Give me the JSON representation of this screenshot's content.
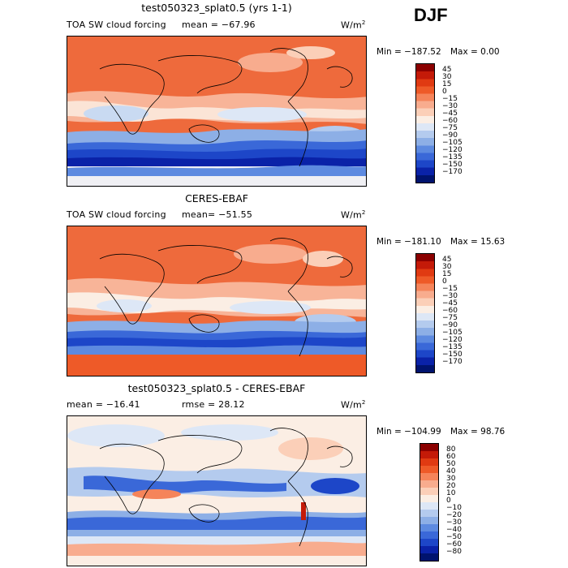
{
  "season": "DJF",
  "units_base": "W/m",
  "units_exp": "2",
  "panels": [
    {
      "title": "test050323_splat0.5 (yrs 1-1)",
      "variable": "TOA SW cloud forcing",
      "stat": "mean = −67.96",
      "min_label": "Min = −187.52",
      "max_label": "Max =    0.00"
    },
    {
      "title": "CERES-EBAF",
      "variable": "TOA SW cloud forcing",
      "stat": "mean= −51.55",
      "min_label": "Min = −181.10",
      "max_label": "Max =  15.63"
    },
    {
      "title": "test050323_splat0.5 - CERES-EBAF",
      "mean": "mean = −16.41",
      "rmse": "rmse =  28.12",
      "min_label": "Min = −104.99",
      "max_label": "Max =  98.76"
    }
  ],
  "colorbar_field": {
    "levels": [
      "45",
      "30",
      "15",
      "0",
      "−15",
      "−30",
      "−45",
      "−60",
      "−75",
      "−90",
      "−105",
      "−120",
      "−135",
      "−150",
      "−170"
    ],
    "colors": [
      "#8b0000",
      "#c41a08",
      "#e03a12",
      "#ee5a28",
      "#f5845a",
      "#f8ac8e",
      "#fbcfb8",
      "#fbeee4",
      "#dde7f6",
      "#b4cbee",
      "#8dafe6",
      "#5d8ae0",
      "#3a68d8",
      "#1d46c8",
      "#0a22a8",
      "#00136e"
    ]
  },
  "colorbar_diff": {
    "levels": [
      "80",
      "60",
      "50",
      "40",
      "30",
      "20",
      "10",
      "0",
      "−10",
      "−20",
      "−30",
      "−40",
      "−50",
      "−60",
      "−80"
    ],
    "colors": [
      "#8b0000",
      "#c41a08",
      "#e03a12",
      "#ee5a28",
      "#f5845a",
      "#f8ac8e",
      "#fbcfb8",
      "#fbeee4",
      "#dde7f6",
      "#b4cbee",
      "#8dafe6",
      "#5d8ae0",
      "#3a68d8",
      "#1d46c8",
      "#0a22a8",
      "#00136e"
    ]
  }
}
